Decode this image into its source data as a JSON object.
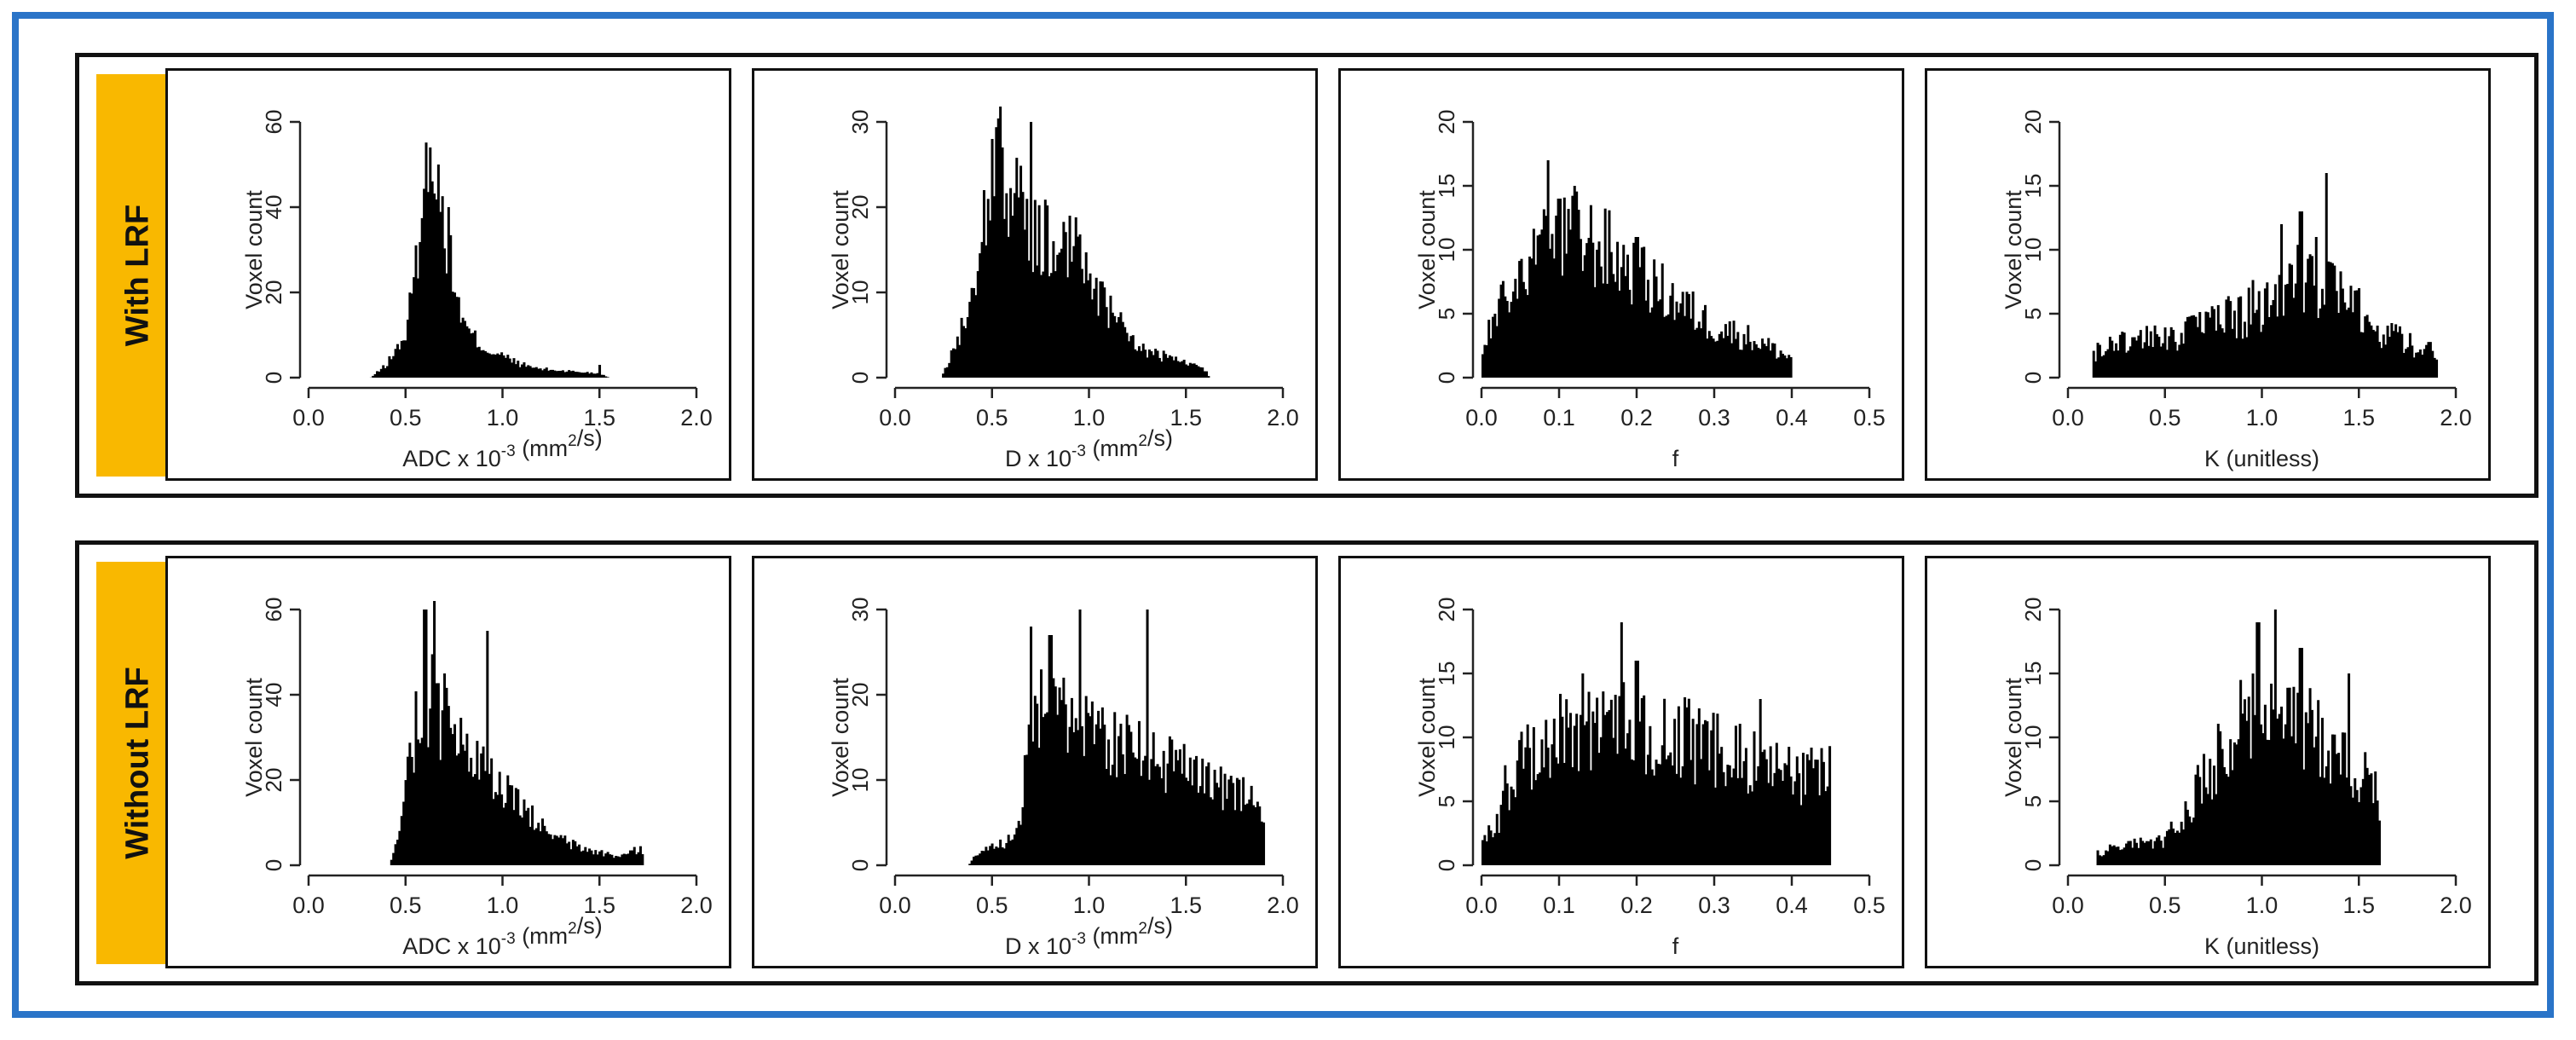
{
  "rows": [
    {
      "label": "With LRF"
    },
    {
      "label": "Without  LRF"
    }
  ],
  "chart_data": [
    {
      "type": "bar",
      "title": "",
      "ylabel": "Voxel count",
      "xlabel_pre": "ADC x 10",
      "xlabel_exp": "-3",
      "xlabel_mid": " (mm",
      "xlabel_exp2": "2",
      "xlabel_post": "/s)",
      "xlim": [
        0,
        2.0
      ],
      "ylim": [
        0,
        60
      ],
      "xticks": [
        "0.0",
        "0.5",
        "1.0",
        "1.5",
        "2.0"
      ],
      "yticks": [
        "0",
        "20",
        "40",
        "60"
      ],
      "profile": [
        [
          0.32,
          0
        ],
        [
          0.4,
          3
        ],
        [
          0.5,
          10
        ],
        [
          0.55,
          25
        ],
        [
          0.6,
          45
        ],
        [
          0.63,
          52
        ],
        [
          0.66,
          48
        ],
        [
          0.7,
          35
        ],
        [
          0.75,
          22
        ],
        [
          0.8,
          12
        ],
        [
          0.9,
          7
        ],
        [
          1.0,
          5
        ],
        [
          1.1,
          3
        ],
        [
          1.2,
          2
        ],
        [
          1.35,
          1.5
        ],
        [
          1.5,
          1
        ],
        [
          1.55,
          0
        ]
      ],
      "spikes": [
        [
          0.63,
          54
        ],
        [
          0.67,
          50
        ],
        [
          0.72,
          40
        ],
        [
          1.5,
          3
        ]
      ],
      "noise": 0.25
    },
    {
      "type": "bar",
      "title": "",
      "ylabel": "Voxel count",
      "xlabel_pre": "D x 10",
      "xlabel_exp": "-3",
      "xlabel_mid": " (mm",
      "xlabel_exp2": "2",
      "xlabel_post": "/s)",
      "xlim": [
        0,
        2.0
      ],
      "ylim": [
        0,
        30
      ],
      "xticks": [
        "0.0",
        "0.5",
        "1.0",
        "1.5",
        "2.0"
      ],
      "yticks": [
        "0",
        "10",
        "20",
        "30"
      ],
      "profile": [
        [
          0.24,
          0
        ],
        [
          0.3,
          3
        ],
        [
          0.4,
          10
        ],
        [
          0.45,
          18
        ],
        [
          0.5,
          24
        ],
        [
          0.55,
          25
        ],
        [
          0.6,
          22
        ],
        [
          0.7,
          17
        ],
        [
          0.8,
          16
        ],
        [
          0.9,
          16
        ],
        [
          1.0,
          12
        ],
        [
          1.1,
          8
        ],
        [
          1.2,
          5
        ],
        [
          1.3,
          3
        ],
        [
          1.45,
          2
        ],
        [
          1.6,
          1
        ],
        [
          1.62,
          0
        ]
      ],
      "spikes": [
        [
          0.5,
          28
        ],
        [
          0.55,
          27
        ],
        [
          0.7,
          30
        ],
        [
          0.9,
          19
        ]
      ],
      "noise": 0.3
    },
    {
      "type": "bar",
      "title": "",
      "ylabel": "Voxel count",
      "xlabel": "f",
      "xlim": [
        0,
        0.5
      ],
      "ylim": [
        0,
        20
      ],
      "xticks": [
        "0.0",
        "0.1",
        "0.2",
        "0.3",
        "0.4",
        "0.5"
      ],
      "yticks": [
        "0",
        "5",
        "10",
        "15",
        "20"
      ],
      "profile": [
        [
          0.0,
          2
        ],
        [
          0.02,
          5
        ],
        [
          0.05,
          8
        ],
        [
          0.08,
          10
        ],
        [
          0.12,
          11
        ],
        [
          0.16,
          10
        ],
        [
          0.2,
          8
        ],
        [
          0.25,
          6
        ],
        [
          0.3,
          4
        ],
        [
          0.35,
          3
        ],
        [
          0.4,
          1.5
        ],
        [
          0.401,
          0
        ]
      ],
      "spikes": [
        [
          0.085,
          17
        ],
        [
          0.12,
          15
        ],
        [
          0.1,
          14
        ],
        [
          0.2,
          11
        ]
      ],
      "noise": 0.35
    },
    {
      "type": "bar",
      "title": "",
      "ylabel": "Voxel count",
      "xlabel": "K (unitless)",
      "xlim": [
        0,
        2.0
      ],
      "ylim": [
        0,
        20
      ],
      "xticks": [
        "0.0",
        "0.5",
        "1.0",
        "1.5",
        "2.0"
      ],
      "yticks": [
        "0",
        "5",
        "10",
        "15",
        "20"
      ],
      "profile": [
        [
          0.13,
          2
        ],
        [
          0.3,
          3
        ],
        [
          0.5,
          3
        ],
        [
          0.7,
          4
        ],
        [
          0.9,
          5
        ],
        [
          1.1,
          7
        ],
        [
          1.25,
          8
        ],
        [
          1.35,
          7
        ],
        [
          1.5,
          5
        ],
        [
          1.7,
          3
        ],
        [
          1.9,
          2
        ],
        [
          1.91,
          0
        ]
      ],
      "spikes": [
        [
          1.33,
          16
        ],
        [
          1.2,
          13
        ],
        [
          1.1,
          12
        ],
        [
          1.28,
          11
        ]
      ],
      "noise": 0.4
    },
    {
      "type": "bar",
      "title": "",
      "ylabel": "Voxel count",
      "xlabel_pre": "ADC x 10",
      "xlabel_exp": "-3",
      "xlabel_mid": " (mm",
      "xlabel_exp2": "2",
      "xlabel_post": "/s)",
      "xlim": [
        0,
        2.0
      ],
      "ylim": [
        0,
        60
      ],
      "xticks": [
        "0.0",
        "0.5",
        "1.0",
        "1.5",
        "2.0"
      ],
      "yticks": [
        "0",
        "20",
        "40",
        "60"
      ],
      "profile": [
        [
          0.42,
          0
        ],
        [
          0.45,
          5
        ],
        [
          0.5,
          18
        ],
        [
          0.55,
          33
        ],
        [
          0.6,
          40
        ],
        [
          0.65,
          38
        ],
        [
          0.7,
          33
        ],
        [
          0.8,
          26
        ],
        [
          0.9,
          22
        ],
        [
          1.0,
          18
        ],
        [
          1.1,
          13
        ],
        [
          1.2,
          9
        ],
        [
          1.3,
          6
        ],
        [
          1.4,
          4
        ],
        [
          1.5,
          3
        ],
        [
          1.6,
          2
        ],
        [
          1.72,
          4
        ],
        [
          1.73,
          0
        ]
      ],
      "spikes": [
        [
          0.6,
          60
        ],
        [
          0.65,
          62
        ],
        [
          0.7,
          45
        ],
        [
          0.92,
          55
        ],
        [
          1.73,
          6
        ]
      ],
      "noise": 0.3
    },
    {
      "type": "bar",
      "title": "",
      "ylabel": "Voxel count",
      "xlabel_pre": "D x 10",
      "xlabel_exp": "-3",
      "xlabel_mid": " (mm",
      "xlabel_exp2": "2",
      "xlabel_post": "/s)",
      "xlim": [
        0,
        2.0
      ],
      "ylim": [
        0,
        30
      ],
      "xticks": [
        "0.0",
        "0.5",
        "1.0",
        "1.5",
        "2.0"
      ],
      "yticks": [
        "0",
        "10",
        "20",
        "30"
      ],
      "profile": [
        [
          0.38,
          0
        ],
        [
          0.4,
          1
        ],
        [
          0.5,
          2
        ],
        [
          0.6,
          3
        ],
        [
          0.65,
          5
        ],
        [
          0.68,
          16
        ],
        [
          0.75,
          18
        ],
        [
          0.9,
          17
        ],
        [
          1.0,
          16
        ],
        [
          1.1,
          15
        ],
        [
          1.2,
          14
        ],
        [
          1.3,
          13
        ],
        [
          1.4,
          12
        ],
        [
          1.5,
          11
        ],
        [
          1.6,
          10
        ],
        [
          1.7,
          9
        ],
        [
          1.8,
          8
        ],
        [
          1.9,
          7
        ],
        [
          1.91,
          0
        ]
      ],
      "spikes": [
        [
          0.95,
          30
        ],
        [
          1.3,
          30
        ],
        [
          0.7,
          28
        ],
        [
          0.8,
          27
        ]
      ],
      "noise": 0.3
    },
    {
      "type": "bar",
      "title": "",
      "ylabel": "Voxel count",
      "xlabel": "f",
      "xlim": [
        0,
        0.5
      ],
      "ylim": [
        0,
        20
      ],
      "xticks": [
        "0.0",
        "0.1",
        "0.2",
        "0.3",
        "0.4",
        "0.5"
      ],
      "yticks": [
        "0",
        "5",
        "10",
        "15",
        "20"
      ],
      "profile": [
        [
          0.0,
          2
        ],
        [
          0.02,
          3
        ],
        [
          0.03,
          6
        ],
        [
          0.05,
          8
        ],
        [
          0.1,
          10
        ],
        [
          0.15,
          11
        ],
        [
          0.2,
          11
        ],
        [
          0.25,
          10
        ],
        [
          0.3,
          9
        ],
        [
          0.35,
          8
        ],
        [
          0.4,
          7
        ],
        [
          0.45,
          7
        ],
        [
          0.451,
          0
        ]
      ],
      "spikes": [
        [
          0.18,
          19
        ],
        [
          0.2,
          16
        ],
        [
          0.13,
          15
        ],
        [
          0.36,
          13
        ]
      ],
      "noise": 0.35
    },
    {
      "type": "bar",
      "title": "",
      "ylabel": "Voxel count",
      "xlabel": "K (unitless)",
      "xlim": [
        0,
        2.0
      ],
      "ylim": [
        0,
        20
      ],
      "xticks": [
        "0.0",
        "0.5",
        "1.0",
        "1.5",
        "2.0"
      ],
      "yticks": [
        "0",
        "5",
        "10",
        "15",
        "20"
      ],
      "profile": [
        [
          0.15,
          1
        ],
        [
          0.3,
          1.5
        ],
        [
          0.5,
          2
        ],
        [
          0.6,
          4
        ],
        [
          0.75,
          8
        ],
        [
          0.9,
          11
        ],
        [
          1.0,
          12
        ],
        [
          1.1,
          12
        ],
        [
          1.2,
          11
        ],
        [
          1.35,
          9
        ],
        [
          1.5,
          7
        ],
        [
          1.6,
          6
        ],
        [
          1.61,
          0
        ]
      ],
      "spikes": [
        [
          1.07,
          20
        ],
        [
          0.98,
          19
        ],
        [
          1.2,
          17
        ],
        [
          1.45,
          15
        ]
      ],
      "noise": 0.35
    }
  ]
}
